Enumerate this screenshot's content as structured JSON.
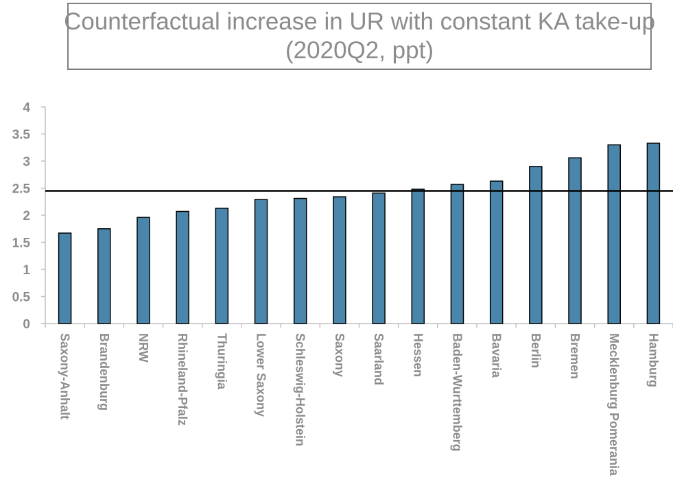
{
  "chart_data": {
    "type": "bar",
    "title": "Counterfactual increase in UR with constant KA take-up",
    "subtitle": "(2020Q2, ppt)",
    "xlabel": "",
    "ylabel": "",
    "categories": [
      "Saxony-Anhalt",
      "Brandenburg",
      "NRW",
      "Rhineland-Pfalz",
      "Thuringia",
      "Lower Saxony",
      "Schleswig-Holstein",
      "Saxony",
      "Saarland",
      "Hessen",
      "Baden-Wurttemberg",
      "Bavaria",
      "Berlin",
      "Bremen",
      "Mecklenburg Pomerania",
      "Hamburg"
    ],
    "values": [
      1.67,
      1.75,
      1.96,
      2.07,
      2.13,
      2.29,
      2.31,
      2.34,
      2.41,
      2.48,
      2.57,
      2.63,
      2.9,
      3.06,
      3.3,
      3.33
    ],
    "ylim": [
      0,
      4
    ],
    "yticks": [
      "0",
      "0.5",
      "1",
      "1.5",
      "2",
      "2.5",
      "3",
      "3.5",
      "4"
    ],
    "reference_line": 2.45,
    "grid": false,
    "legend": "none",
    "colors": {
      "bar": "#4a86ab",
      "bar_edge": "#000000",
      "reference_line": "#000000",
      "text": "#8c8c8c",
      "axis": "#bfbfbf"
    }
  }
}
